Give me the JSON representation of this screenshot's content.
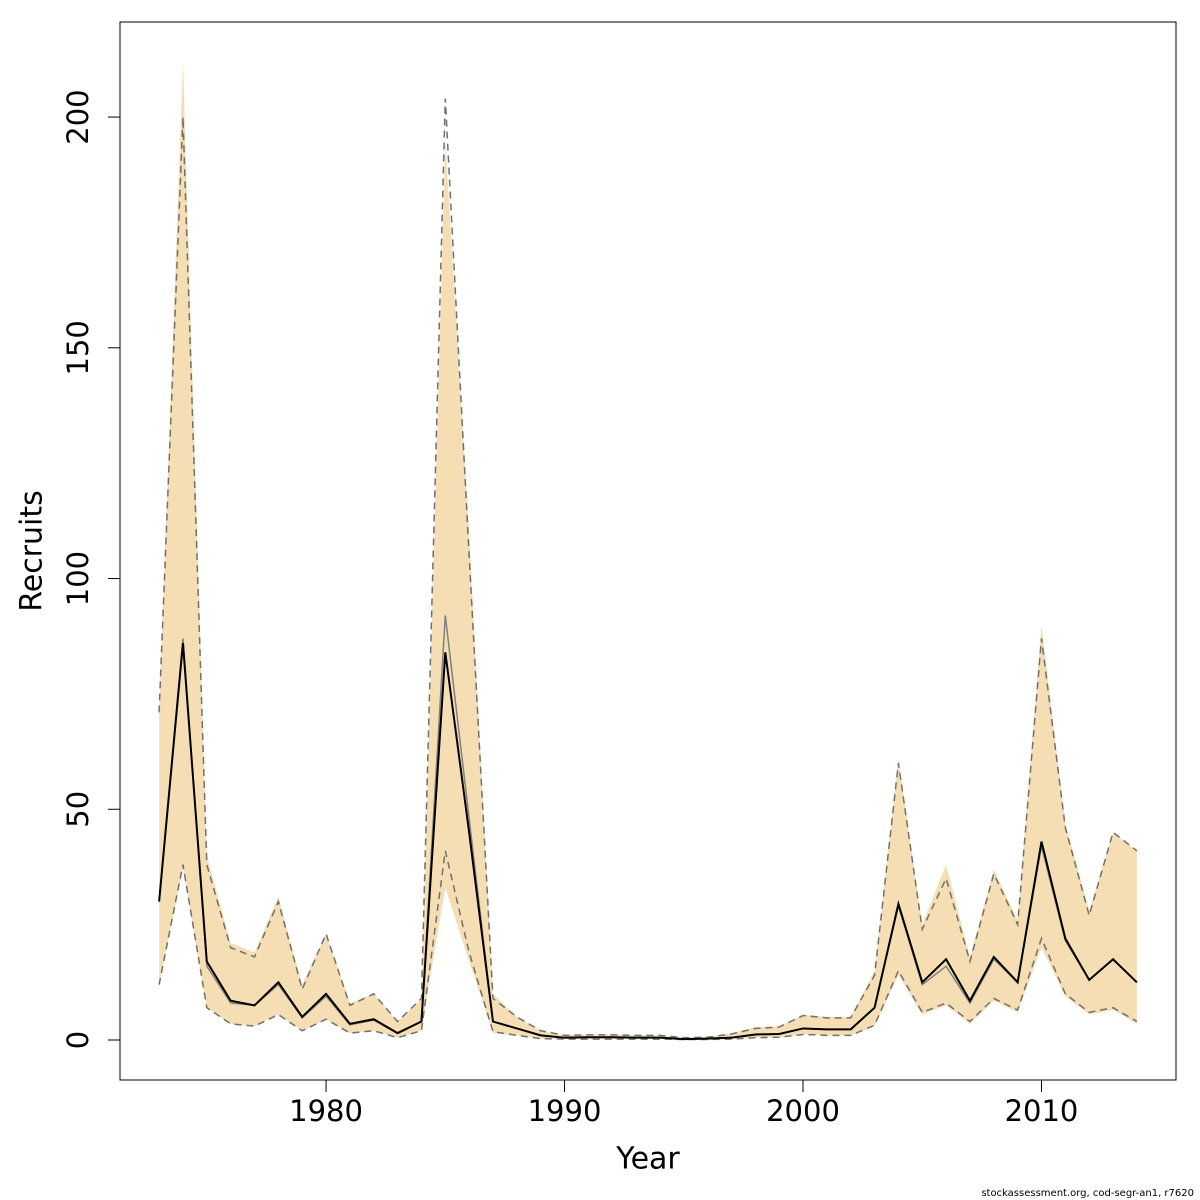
{
  "chart_data": {
    "type": "line",
    "xlabel": "Year",
    "ylabel": "Recruits",
    "footnote": "stockassessment.org, cod-segr-an1, r7620",
    "x": [
      1973,
      1974,
      1975,
      1976,
      1977,
      1978,
      1979,
      1980,
      1981,
      1982,
      1983,
      1984,
      1985,
      1986,
      1987,
      1988,
      1989,
      1990,
      1991,
      1992,
      1993,
      1994,
      1995,
      1996,
      1997,
      1998,
      1999,
      2000,
      2001,
      2002,
      2003,
      2004,
      2005,
      2006,
      2007,
      2008,
      2009,
      2010,
      2011,
      2012,
      2013,
      2014
    ],
    "band": {
      "color": "#f5deb3",
      "upper": [
        71,
        212,
        40,
        21,
        19,
        31,
        12,
        23,
        8,
        10,
        4,
        9,
        195,
        110,
        10,
        5,
        2,
        1,
        1.2,
        1.2,
        1,
        1,
        0.5,
        0.7,
        1.5,
        2.8,
        3,
        5.5,
        5,
        5,
        15,
        61,
        25,
        38,
        18,
        37,
        26,
        90,
        47,
        28,
        45,
        41
      ],
      "lower": [
        12,
        37,
        7,
        3.5,
        3,
        5.5,
        2,
        4.5,
        1.5,
        2,
        0.5,
        2,
        33,
        17,
        1.5,
        1,
        0.3,
        0.2,
        0.2,
        0.2,
        0.2,
        0.2,
        0.1,
        0.1,
        0.2,
        0.5,
        0.6,
        1.2,
        1,
        1,
        3,
        14,
        5.5,
        7.5,
        3.5,
        8.5,
        6,
        20,
        9.5,
        5.5,
        6.5,
        3.5
      ]
    },
    "series": [
      {
        "color": "#808080",
        "dash": false,
        "width": 1.5,
        "values": [
          30,
          87,
          16,
          8,
          7.5,
          12,
          4.8,
          9.5,
          3.3,
          4.3,
          1.4,
          4,
          92,
          48,
          4,
          2.5,
          1,
          0.5,
          0.6,
          0.6,
          0.5,
          0.5,
          0.2,
          0.3,
          0.5,
          1.2,
          1.3,
          2.5,
          2.3,
          2.3,
          7,
          29,
          12,
          16,
          8,
          17.5,
          12.5,
          42,
          21.5,
          13,
          17.5,
          12.5
        ]
      },
      {
        "color": "#000000",
        "dash": false,
        "width": 2,
        "values": [
          30,
          86,
          17,
          8.5,
          7.5,
          12.5,
          5,
          10,
          3.5,
          4.5,
          1.5,
          4,
          84,
          45,
          4,
          2.5,
          1,
          0.5,
          0.6,
          0.6,
          0.5,
          0.5,
          0.2,
          0.3,
          0.5,
          1.2,
          1.3,
          2.5,
          2.3,
          2.3,
          7,
          29.5,
          12.5,
          17.5,
          8.5,
          18,
          12.5,
          43,
          22,
          13,
          17.5,
          12.5
        ]
      },
      {
        "color": "#707070",
        "dash": true,
        "width": 1.5,
        "values": [
          71,
          200,
          38,
          20,
          18,
          30,
          11,
          23,
          7.5,
          10,
          4,
          9,
          204,
          105,
          9,
          5,
          2,
          1,
          1.1,
          1.1,
          1,
          1,
          0.5,
          0.6,
          1.3,
          2.5,
          2.8,
          5.3,
          4.8,
          4.8,
          14,
          60,
          24,
          35,
          17,
          36,
          25,
          87,
          46,
          27,
          45,
          41
        ]
      },
      {
        "color": "#707070",
        "dash": true,
        "width": 1.5,
        "values": [
          12,
          38,
          7,
          3.5,
          3,
          5.5,
          2,
          4.5,
          1.5,
          2,
          0.5,
          2,
          41,
          19,
          1.8,
          1,
          0.3,
          0.2,
          0.2,
          0.2,
          0.2,
          0.2,
          0.1,
          0.1,
          0.2,
          0.5,
          0.6,
          1.2,
          1,
          1,
          3.2,
          15,
          6,
          8,
          4,
          9,
          6.5,
          22,
          10,
          6,
          7,
          4
        ]
      }
    ],
    "xlim": [
      1971.36,
      2015.64
    ],
    "xticks": [
      1980,
      1990,
      2000,
      2010
    ],
    "ylim": [
      -8.67,
      220.6
    ],
    "yticks": [
      0,
      50,
      100,
      150,
      200
    ]
  }
}
